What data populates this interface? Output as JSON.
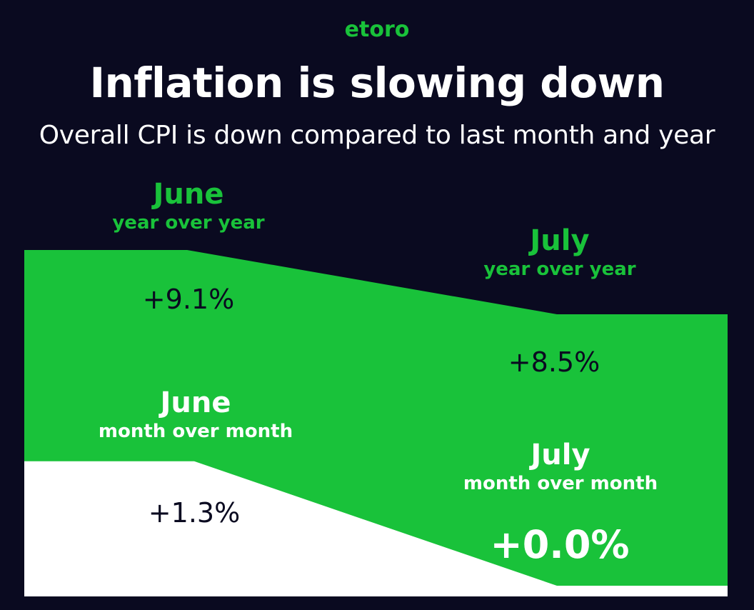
{
  "brand": {
    "logo_text": "etoro",
    "accent_color": "#19c23a",
    "background_color": "#0a0a20"
  },
  "title": "Inflation is slowing down",
  "subtitle": "Overall CPI is down compared to last month and year",
  "chart_data": {
    "type": "area",
    "categories": [
      "June",
      "July"
    ],
    "series": [
      {
        "name": "year over year",
        "values": [
          9.1,
          8.5
        ],
        "labels": [
          "+9.1%",
          "+8.5%"
        ],
        "color": "#19c23a"
      },
      {
        "name": "month over month",
        "values": [
          1.3,
          0.0
        ],
        "labels": [
          "+1.3%",
          "+0.0%"
        ],
        "color": "#ffffff"
      }
    ],
    "point_labels": {
      "june_yoy": {
        "month": "June",
        "measure": "year over year"
      },
      "july_yoy": {
        "month": "July",
        "measure": "year over year"
      },
      "june_mom": {
        "month": "June",
        "measure": "month over month"
      },
      "july_mom": {
        "month": "July",
        "measure": "month over month"
      }
    },
    "grid": false
  }
}
